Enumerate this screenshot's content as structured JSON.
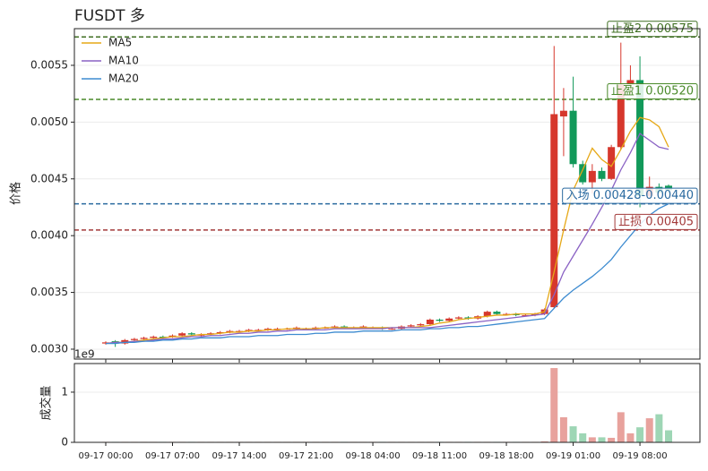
{
  "chart_data": {
    "type": "candlestick",
    "title": "FUSDT  多",
    "ylabel": "价格",
    "x": [
      "09-17 00:00",
      "09-17 01:00",
      "09-17 02:00",
      "09-17 03:00",
      "09-17 04:00",
      "09-17 05:00",
      "09-17 06:00",
      "09-17 07:00",
      "09-17 08:00",
      "09-17 09:00",
      "09-17 10:00",
      "09-17 11:00",
      "09-17 12:00",
      "09-17 13:00",
      "09-17 14:00",
      "09-17 15:00",
      "09-17 16:00",
      "09-17 17:00",
      "09-17 18:00",
      "09-17 19:00",
      "09-17 20:00",
      "09-17 21:00",
      "09-17 22:00",
      "09-17 23:00",
      "09-18 00:00",
      "09-18 01:00",
      "09-18 02:00",
      "09-18 03:00",
      "09-18 04:00",
      "09-18 05:00",
      "09-18 06:00",
      "09-18 07:00",
      "09-18 08:00",
      "09-18 09:00",
      "09-18 10:00",
      "09-18 11:00",
      "09-18 12:00",
      "09-18 13:00",
      "09-18 14:00",
      "09-18 15:00",
      "09-18 16:00",
      "09-18 17:00",
      "09-18 18:00",
      "09-18 19:00",
      "09-18 20:00",
      "09-18 21:00",
      "09-18 22:00",
      "09-18 23:00",
      "09-19 00:00",
      "09-19 01:00",
      "09-19 02:00",
      "09-19 03:00",
      "09-19 04:00",
      "09-19 05:00",
      "09-19 06:00",
      "09-19 07:00",
      "09-19 08:00",
      "09-19 09:00",
      "09-19 10:00",
      "09-19 11:00"
    ],
    "xticks": [
      "09-17 00:00",
      "09-17 07:00",
      "09-17 14:00",
      "09-17 21:00",
      "09-18 04:00",
      "09-18 11:00",
      "09-18 18:00",
      "09-19 01:00",
      "09-19 08:00"
    ],
    "open": [
      0.00305,
      0.00307,
      0.00305,
      0.00308,
      0.00309,
      0.0031,
      0.00311,
      0.00311,
      0.00312,
      0.00314,
      0.00312,
      0.00313,
      0.00314,
      0.00315,
      0.00316,
      0.00316,
      0.00317,
      0.00317,
      0.00317,
      0.00318,
      0.00318,
      0.00318,
      0.00318,
      0.00319,
      0.00319,
      0.0032,
      0.00319,
      0.00319,
      0.00319,
      0.00319,
      0.00318,
      0.00318,
      0.0032,
      0.00321,
      0.00322,
      0.00326,
      0.00325,
      0.00327,
      0.00328,
      0.00327,
      0.00329,
      0.00333,
      0.00331,
      0.00331,
      0.0033,
      0.0033,
      0.00331,
      0.00337,
      0.00505,
      0.0051,
      0.00463,
      0.00447,
      0.00457,
      0.0045,
      0.00478,
      0.00533,
      0.00537,
      0.00435,
      0.00443,
      0.00444
    ],
    "high": [
      0.00307,
      0.00308,
      0.00309,
      0.0031,
      0.00311,
      0.00312,
      0.00312,
      0.00313,
      0.00315,
      0.00315,
      0.00314,
      0.00315,
      0.00316,
      0.00317,
      0.00317,
      0.00318,
      0.00318,
      0.00319,
      0.00319,
      0.00319,
      0.0032,
      0.00319,
      0.0032,
      0.0032,
      0.00321,
      0.00321,
      0.0032,
      0.00321,
      0.0032,
      0.0032,
      0.00319,
      0.00321,
      0.00322,
      0.00323,
      0.00327,
      0.00327,
      0.00328,
      0.00329,
      0.00329,
      0.0033,
      0.00334,
      0.00334,
      0.00332,
      0.00332,
      0.00331,
      0.00332,
      0.00336,
      0.00567,
      0.0053,
      0.0054,
      0.00466,
      0.00463,
      0.0046,
      0.0048,
      0.0057,
      0.0055,
      0.00558,
      0.00452,
      0.00446,
      0.00445
    ],
    "low": [
      0.00304,
      0.00302,
      0.00304,
      0.00307,
      0.00308,
      0.00309,
      0.00309,
      0.0031,
      0.00311,
      0.00312,
      0.00311,
      0.00312,
      0.00313,
      0.00314,
      0.00315,
      0.00315,
      0.00316,
      0.00316,
      0.00316,
      0.00317,
      0.00317,
      0.00317,
      0.00317,
      0.00318,
      0.00318,
      0.00318,
      0.00318,
      0.00318,
      0.00318,
      0.00317,
      0.00317,
      0.00317,
      0.00319,
      0.0032,
      0.00321,
      0.00324,
      0.00324,
      0.00326,
      0.00326,
      0.00326,
      0.00328,
      0.0033,
      0.0033,
      0.00329,
      0.00329,
      0.00329,
      0.0033,
      0.00336,
      0.0047,
      0.0046,
      0.00445,
      0.00437,
      0.00448,
      0.00449,
      0.00476,
      0.00525,
      0.00425,
      0.00433,
      0.00437,
      0.00438
    ],
    "close": [
      0.00306,
      0.00305,
      0.00308,
      0.00309,
      0.0031,
      0.00311,
      0.0031,
      0.00312,
      0.00314,
      0.00313,
      0.00313,
      0.00314,
      0.00315,
      0.00316,
      0.00316,
      0.00317,
      0.00317,
      0.00318,
      0.00318,
      0.00318,
      0.00319,
      0.00318,
      0.00319,
      0.00319,
      0.0032,
      0.00319,
      0.00319,
      0.0032,
      0.00319,
      0.00318,
      0.00318,
      0.0032,
      0.00321,
      0.00322,
      0.00326,
      0.00325,
      0.00327,
      0.00328,
      0.00327,
      0.00329,
      0.00333,
      0.00331,
      0.00331,
      0.0033,
      0.0033,
      0.00331,
      0.00335,
      0.00507,
      0.0051,
      0.00463,
      0.00447,
      0.00457,
      0.0045,
      0.00478,
      0.00533,
      0.00537,
      0.00435,
      0.00443,
      0.00438,
      0.0044
    ],
    "up_color": "#d6372c",
    "down_color": "#12995a",
    "series": [
      {
        "name": "MA5",
        "color": "#e6a817",
        "values": [
          0.00305,
          0.00306,
          0.00306,
          0.00307,
          0.00308,
          0.00309,
          0.0031,
          0.00311,
          0.00311,
          0.00312,
          0.00313,
          0.00313,
          0.00314,
          0.00315,
          0.00315,
          0.00316,
          0.00316,
          0.00317,
          0.00317,
          0.00318,
          0.00318,
          0.00318,
          0.00318,
          0.00319,
          0.00319,
          0.00319,
          0.00319,
          0.00319,
          0.00319,
          0.00319,
          0.00319,
          0.00319,
          0.00319,
          0.0032,
          0.00321,
          0.00323,
          0.00324,
          0.00326,
          0.00327,
          0.00328,
          0.00329,
          0.0033,
          0.0033,
          0.00331,
          0.00331,
          0.00331,
          0.00333,
          0.00368,
          0.00405,
          0.0044,
          0.00458,
          0.00477,
          0.00467,
          0.00461,
          0.00476,
          0.00492,
          0.00504,
          0.00502,
          0.00496,
          0.00478
        ]
      },
      {
        "name": "MA10",
        "color": "#8a62c4",
        "values": [
          0.00305,
          0.00306,
          0.00306,
          0.00307,
          0.00307,
          0.00308,
          0.00309,
          0.00309,
          0.0031,
          0.00311,
          0.00311,
          0.00312,
          0.00312,
          0.00313,
          0.00314,
          0.00314,
          0.00315,
          0.00315,
          0.00316,
          0.00316,
          0.00317,
          0.00317,
          0.00317,
          0.00317,
          0.00318,
          0.00318,
          0.00318,
          0.00318,
          0.00318,
          0.00318,
          0.00319,
          0.00319,
          0.00319,
          0.00319,
          0.00319,
          0.0032,
          0.00321,
          0.00322,
          0.00323,
          0.00324,
          0.00325,
          0.00326,
          0.00327,
          0.00328,
          0.00329,
          0.0033,
          0.00331,
          0.00348,
          0.00368,
          0.00382,
          0.00396,
          0.0041,
          0.00425,
          0.0044,
          0.00458,
          0.00473,
          0.0049,
          0.00484,
          0.00478,
          0.00476
        ]
      },
      {
        "name": "MA20",
        "color": "#3d8bd0",
        "values": [
          0.00305,
          0.00305,
          0.00306,
          0.00306,
          0.00307,
          0.00307,
          0.00308,
          0.00308,
          0.00309,
          0.00309,
          0.0031,
          0.0031,
          0.0031,
          0.00311,
          0.00311,
          0.00311,
          0.00312,
          0.00312,
          0.00312,
          0.00313,
          0.00313,
          0.00313,
          0.00314,
          0.00314,
          0.00315,
          0.00315,
          0.00315,
          0.00316,
          0.00316,
          0.00316,
          0.00316,
          0.00317,
          0.00317,
          0.00317,
          0.00318,
          0.00318,
          0.00319,
          0.00319,
          0.0032,
          0.0032,
          0.00321,
          0.00322,
          0.00323,
          0.00324,
          0.00325,
          0.00326,
          0.00327,
          0.00336,
          0.00345,
          0.00352,
          0.00358,
          0.00364,
          0.00371,
          0.00379,
          0.0039,
          0.004,
          0.0041,
          0.00418,
          0.00424,
          0.00428
        ]
      }
    ],
    "legend": "upper left",
    "grid": true,
    "ylim": [
      0.002913,
      0.005823
    ],
    "yticks": [
      {
        "value": 0.003,
        "label": "0.0030"
      },
      {
        "value": 0.0035,
        "label": "0.0035"
      },
      {
        "value": 0.004,
        "label": "0.0040"
      },
      {
        "value": 0.0045,
        "label": "0.0045"
      },
      {
        "value": 0.005,
        "label": "0.0050"
      },
      {
        "value": 0.0055,
        "label": "0.0055"
      }
    ],
    "levels": [
      {
        "value": 0.00575,
        "label": "止盈2 0.00575",
        "color": "#3f6f22"
      },
      {
        "value": 0.0052,
        "label": "止盈1 0.00520",
        "color": "#4a8a2a"
      },
      {
        "value": 0.00428,
        "label": "入场 0.00428-0.00440",
        "color": "#2a6aa0"
      },
      {
        "value": 0.00405,
        "label": "止损 0.00405",
        "color": "#a33a3a"
      }
    ],
    "volume": {
      "ylabel": "成交量",
      "offset_text": "1e9",
      "up_color": "#e8a29d",
      "down_color": "#9ed6b5",
      "values": [
        0.01,
        0.01,
        0.01,
        0.01,
        0.01,
        0.01,
        0.01,
        0.01,
        0.01,
        0.01,
        0.01,
        0.01,
        0.01,
        0.01,
        0.01,
        0.01,
        0.01,
        0.01,
        0.01,
        0.01,
        0.01,
        0.01,
        0.01,
        0.01,
        0.01,
        0.01,
        0.01,
        0.01,
        0.01,
        0.01,
        0.01,
        0.01,
        0.01,
        0.01,
        0.01,
        0.01,
        0.01,
        0.01,
        0.01,
        0.01,
        0.01,
        0.01,
        0.01,
        0.01,
        0.01,
        0.01,
        0.02,
        1.48,
        0.5,
        0.32,
        0.18,
        0.1,
        0.1,
        0.09,
        0.6,
        0.18,
        0.3,
        0.48,
        0.56,
        0.24
      ],
      "ylim": [
        0,
        1.57
      ],
      "yticks": [
        0,
        1
      ]
    }
  }
}
